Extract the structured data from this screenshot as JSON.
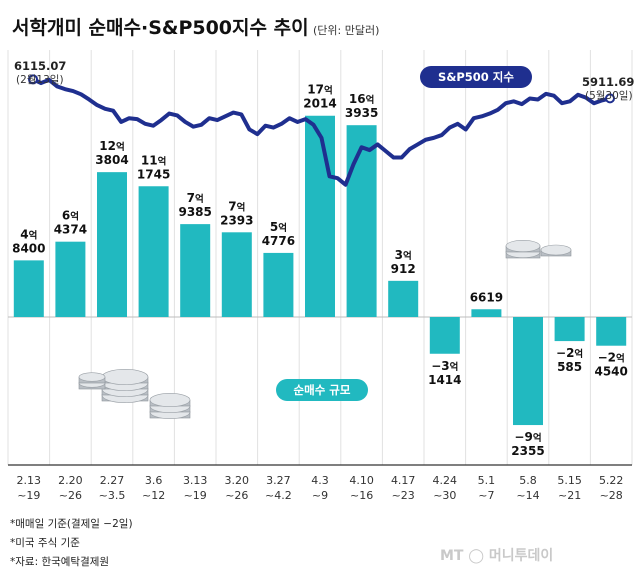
{
  "title": "서학개미 순매수·S&P500지수 추이",
  "unit": "(단위: 만달러)",
  "chart_data": {
    "type": "bar+line",
    "categories": [
      [
        "2.13",
        "~19"
      ],
      [
        "2.20",
        "~26"
      ],
      [
        "2.27",
        "~3.5"
      ],
      [
        "3.6",
        "~12"
      ],
      [
        "3.13",
        "~19"
      ],
      [
        "3.20",
        "~26"
      ],
      [
        "3.27",
        "~4.2"
      ],
      [
        "4.3",
        "~9"
      ],
      [
        "4.10",
        "~16"
      ],
      [
        "4.17",
        "~23"
      ],
      [
        "4.24",
        "~30"
      ],
      [
        "5.1",
        "~7"
      ],
      [
        "5.8",
        "~14"
      ],
      [
        "5.15",
        "~21"
      ],
      [
        "5.22",
        "~28"
      ]
    ],
    "net_buy": {
      "name": "순매수 규모",
      "values": [
        48400,
        64374,
        123804,
        111745,
        79385,
        72393,
        54776,
        172014,
        163935,
        30912,
        -31414,
        6619,
        -92355,
        -20585,
        -24540
      ],
      "labels": [
        {
          "eok": "4",
          "rest": "8400"
        },
        {
          "eok": "6",
          "rest": "4374"
        },
        {
          "eok": "12",
          "rest": "3804"
        },
        {
          "eok": "11",
          "rest": "1745"
        },
        {
          "eok": "7",
          "rest": "9385"
        },
        {
          "eok": "7",
          "rest": "2393"
        },
        {
          "eok": "5",
          "rest": "4776"
        },
        {
          "eok": "17",
          "rest": "2014"
        },
        {
          "eok": "16",
          "rest": "3935"
        },
        {
          "eok": "3",
          "rest": "912"
        },
        {
          "eok": "−3",
          "rest": "1414"
        },
        {
          "eok": "",
          "rest": "6619"
        },
        {
          "eok": "−9",
          "rest": "2355"
        },
        {
          "eok": "−2",
          "rest": "585"
        },
        {
          "eok": "−2",
          "rest": "4540"
        }
      ],
      "eok_unit": "억",
      "color": "#21b9c0"
    },
    "sp500": {
      "name": "S&P500 지수",
      "color": "#1f2f8f",
      "values": [
        6115.07,
        6075,
        6110,
        6040,
        6010,
        5990,
        5955,
        5900,
        5840,
        5800,
        5780,
        5660,
        5700,
        5690,
        5640,
        5620,
        5680,
        5750,
        5730,
        5660,
        5610,
        5630,
        5700,
        5680,
        5720,
        5760,
        5740,
        5580,
        5530,
        5620,
        5600,
        5640,
        5700,
        5660,
        5690,
        5630,
        5490,
        5080,
        5060,
        4990,
        5210,
        5390,
        5360,
        5420,
        5350,
        5280,
        5280,
        5370,
        5420,
        5470,
        5490,
        5520,
        5600,
        5640,
        5580,
        5700,
        5720,
        5750,
        5790,
        5860,
        5880,
        5850,
        5910,
        5900,
        5960,
        5940,
        5860,
        5880,
        5950,
        5920,
        5860,
        5890,
        5911.69
      ],
      "start": {
        "value": "6115.07",
        "date": "(2월13일)"
      },
      "end": {
        "value": "5911.69",
        "date": "(5월30일)"
      },
      "ylim": [
        4400,
        6300
      ]
    },
    "ylim": [
      -110000,
      200000
    ]
  },
  "legend": {
    "sp500": "S&P500 지수",
    "net_buy": "순매수 규모"
  },
  "notes": [
    "*매매일 기준(결제일 −2일)",
    "*미국 주식 기준",
    "*자료: 한국예탁결제원"
  ],
  "watermark": "MT 머니투데이"
}
